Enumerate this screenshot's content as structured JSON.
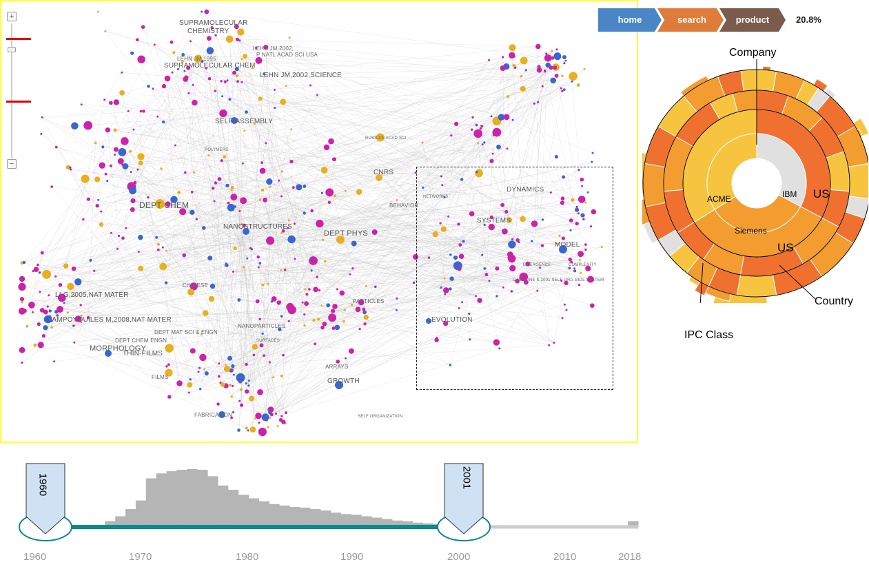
{
  "breadcrumb": {
    "items": [
      {
        "label": "home",
        "color": "#4a86c6"
      },
      {
        "label": "search",
        "color": "#e07c3a"
      },
      {
        "label": "product",
        "color": "#7b5b4b"
      }
    ],
    "percent": "20.8%"
  },
  "zoom": {
    "plus": "+",
    "minus": "−"
  },
  "network": {
    "labels": {
      "l1": "SUPRAMOLECULAR",
      "l2": "CHEMISTRY",
      "l3": "LEHN JM,2002,",
      "l4": "P NATL ACAD SCI USA",
      "l5": "LEHN JM,1995",
      "l6": "SUPRAMOLECULAR CHEM",
      "l7": "LEHN JM,2002,SCIENCE",
      "l8": "SELF-ASSEMBLY",
      "l9": "CNRS",
      "l10": "DEPT CHEM",
      "l11": "NANOSTRUCTURES",
      "l12": "DEPT PHYS",
      "l13": "DYNAMICS",
      "l14": "SYSTEMS",
      "l15": "BEHAVIOR",
      "l16": "MODEL",
      "l17": "CHINESE",
      "l18": "LI G,2005,NAT MATER",
      "l19": "CAMPOYQUILES M,2008,NAT MATER",
      "l20": "DEPT MAT SCI & ENGN",
      "l21": "DEPT CHEM ENGN",
      "l22": "MORPHOLOGY",
      "l23": "THIN-FILMS",
      "l24": "FILMS",
      "l25": "PARTICLES",
      "l26": "EVOLUTION",
      "l27": "NANOPARTICLES",
      "l28": "ARRAYS",
      "l29": "GROWTH",
      "l30": "FABRICATION",
      "l31": "SELF ORGANIZATION",
      "l32": "CAMAZINE S,2001,SELF ORG BIOL SYSTEM",
      "l33": "COMPLEXITY",
      "l34": "EMERGENCE",
      "l35": "NETWORKS",
      "l36": "POLYMERS",
      "l37": "RUSSIAN ACAD SCI",
      "l38": "SURFACES"
    }
  },
  "sunburst": {
    "callouts": {
      "company": "Company",
      "country": "Country",
      "ipc": "IPC Class"
    },
    "inner_labels": {
      "acme": "ACME",
      "ibm": "IBM",
      "siemens": "Siemens",
      "us1": "US",
      "us2": "US"
    },
    "colors": [
      "#f0712f",
      "#f39c2f",
      "#f7c43f",
      "#e0e0e0"
    ]
  },
  "timeline": {
    "years": [
      "1960",
      "1970",
      "1980",
      "1990",
      "2000",
      "2010",
      "2018"
    ],
    "start_handle": "1960",
    "end_handle": "2001",
    "range": [
      1960,
      2018
    ],
    "selected": [
      1960,
      2001
    ],
    "histogram_x": [
      1966,
      1967,
      1968,
      1969,
      1970,
      1971,
      1972,
      1973,
      1974,
      1975,
      1976,
      1977,
      1978,
      1979,
      1980,
      1981,
      1982,
      1983,
      1984,
      1985,
      1986,
      1987,
      1988,
      1989,
      1990,
      1991,
      1992,
      1993,
      1994,
      1995,
      1996,
      1997,
      1998,
      1999,
      2000,
      2001,
      2002,
      2003,
      2017
    ],
    "histogram_values": [
      8,
      15,
      25,
      37,
      68,
      75,
      78,
      80,
      81,
      80,
      71,
      58,
      52,
      45,
      40,
      36,
      32,
      30,
      28,
      27,
      25,
      23,
      20,
      18,
      17,
      15,
      13,
      11,
      9,
      8,
      6,
      5,
      4,
      3,
      3,
      2,
      2,
      1,
      8
    ],
    "colors": {
      "bar": "#b5b5b5",
      "selected_track": "#0a8a8a",
      "track": "#cccccc",
      "handle": "#cfe2f3",
      "knob": "#0a8a8a"
    }
  }
}
